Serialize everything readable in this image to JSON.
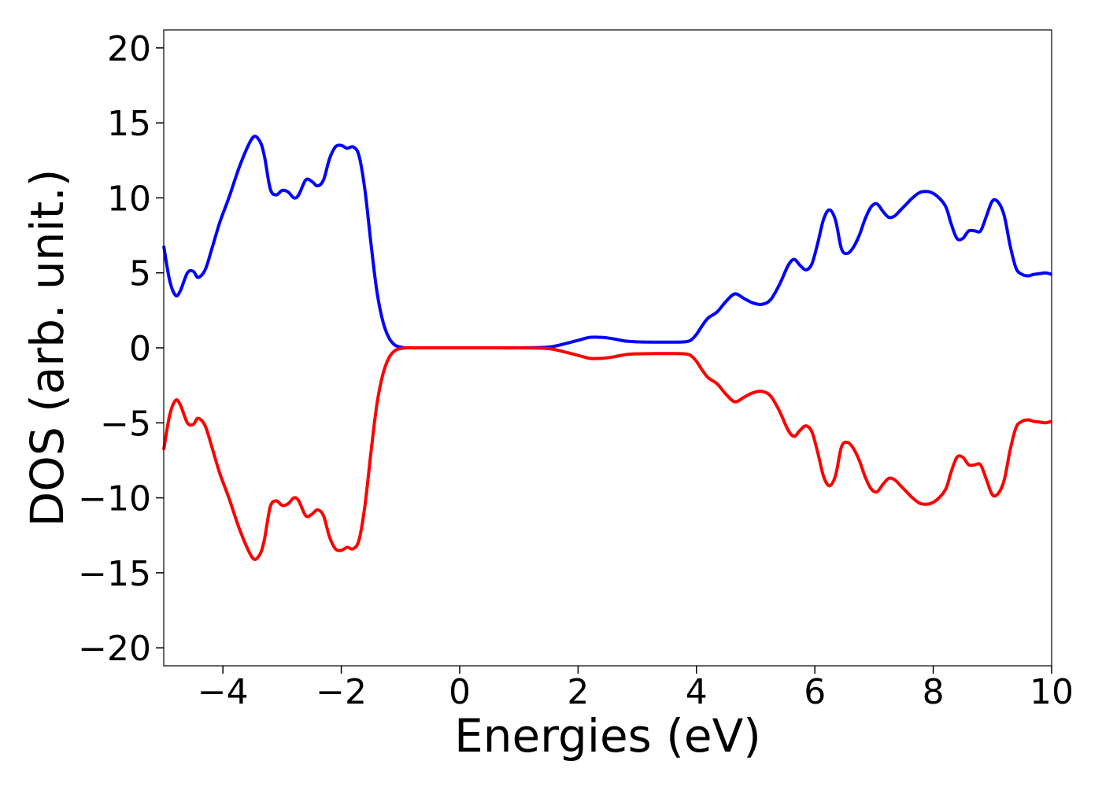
{
  "chart_data": {
    "type": "line",
    "xlabel": "Energies (eV)",
    "ylabel": "DOS (arb. unit.)",
    "xlim": [
      -5,
      10
    ],
    "ylim": [
      -21.2,
      21.2
    ],
    "xticks": [
      -4,
      -2,
      0,
      2,
      4,
      6,
      8,
      10
    ],
    "xtick_labels": [
      "−4",
      "−2",
      "0",
      "2",
      "4",
      "6",
      "8",
      "10"
    ],
    "yticks": [
      20,
      15,
      10,
      5,
      0,
      -5,
      -10,
      -15,
      -20
    ],
    "ytick_labels": [
      "20",
      "15",
      "10",
      "5",
      "0",
      "−5",
      "−10",
      "−15",
      "−20"
    ],
    "grid": false,
    "legend": "none",
    "series": [
      {
        "color": "#0000ff",
        "x": [
          -5.0,
          -4.9,
          -4.8,
          -4.72,
          -4.6,
          -4.5,
          -4.42,
          -4.3,
          -4.18,
          -4.05,
          -3.9,
          -3.7,
          -3.5,
          -3.38,
          -3.3,
          -3.2,
          -3.1,
          -3.0,
          -2.9,
          -2.8,
          -2.72,
          -2.6,
          -2.5,
          -2.4,
          -2.3,
          -2.2,
          -2.1,
          -2.0,
          -1.9,
          -1.8,
          -1.7,
          -1.6,
          -1.5,
          -1.4,
          -1.3,
          -1.2,
          -1.1,
          -1.0,
          -0.9,
          -0.8,
          -0.7,
          -0.6,
          -0.5,
          -0.3,
          0.0,
          0.5,
          1.0,
          1.5,
          1.8,
          2.0,
          2.2,
          2.4,
          2.6,
          2.8,
          3.0,
          3.3,
          3.6,
          3.8,
          3.9,
          4.0,
          4.1,
          4.2,
          4.35,
          4.5,
          4.65,
          4.8,
          4.95,
          5.1,
          5.25,
          5.4,
          5.55,
          5.65,
          5.75,
          5.85,
          5.95,
          6.05,
          6.15,
          6.25,
          6.35,
          6.45,
          6.55,
          6.65,
          6.75,
          6.85,
          6.95,
          7.05,
          7.15,
          7.25,
          7.35,
          7.45,
          7.55,
          7.65,
          7.8,
          8.0,
          8.2,
          8.3,
          8.4,
          8.5,
          8.6,
          8.7,
          8.8,
          8.9,
          9.0,
          9.1,
          9.2,
          9.3,
          9.4,
          9.5,
          9.6,
          9.7,
          9.8,
          9.9,
          10.0
        ],
        "values": [
          6.8,
          4.5,
          3.5,
          3.8,
          5.0,
          5.1,
          4.7,
          5.2,
          6.7,
          8.4,
          10.0,
          12.3,
          14.0,
          13.8,
          12.8,
          10.6,
          10.2,
          10.5,
          10.4,
          10.0,
          10.2,
          11.2,
          11.1,
          10.8,
          11.2,
          12.6,
          13.4,
          13.5,
          13.3,
          13.4,
          12.8,
          10.5,
          7.0,
          3.8,
          1.8,
          0.7,
          0.2,
          0.05,
          0.0,
          0.0,
          0.0,
          0.0,
          0.0,
          0.0,
          0.0,
          0.0,
          0.0,
          0.05,
          0.3,
          0.5,
          0.7,
          0.7,
          0.6,
          0.45,
          0.4,
          0.38,
          0.38,
          0.4,
          0.5,
          0.9,
          1.5,
          2.0,
          2.4,
          3.1,
          3.6,
          3.3,
          3.0,
          2.9,
          3.2,
          4.2,
          5.5,
          5.9,
          5.5,
          5.2,
          5.6,
          7.0,
          8.6,
          9.2,
          8.5,
          6.6,
          6.3,
          6.7,
          7.5,
          8.6,
          9.4,
          9.6,
          9.1,
          8.7,
          8.8,
          9.2,
          9.6,
          10.0,
          10.4,
          10.3,
          9.5,
          8.3,
          7.3,
          7.3,
          7.8,
          7.8,
          7.8,
          8.8,
          9.8,
          9.7,
          8.8,
          6.8,
          5.3,
          4.9,
          4.8,
          4.9,
          4.95,
          5.0,
          4.9
        ]
      },
      {
        "color": "#ff0000",
        "x": [
          -5.0,
          -4.9,
          -4.8,
          -4.72,
          -4.6,
          -4.5,
          -4.42,
          -4.3,
          -4.18,
          -4.05,
          -3.9,
          -3.7,
          -3.5,
          -3.38,
          -3.3,
          -3.2,
          -3.1,
          -3.0,
          -2.9,
          -2.8,
          -2.72,
          -2.6,
          -2.5,
          -2.4,
          -2.3,
          -2.2,
          -2.1,
          -2.0,
          -1.9,
          -1.8,
          -1.7,
          -1.6,
          -1.5,
          -1.4,
          -1.3,
          -1.2,
          -1.1,
          -1.0,
          -0.9,
          -0.8,
          -0.7,
          -0.6,
          -0.5,
          -0.3,
          0.0,
          0.5,
          1.0,
          1.5,
          1.8,
          2.0,
          2.2,
          2.4,
          2.6,
          2.8,
          3.0,
          3.3,
          3.6,
          3.8,
          3.9,
          4.0,
          4.1,
          4.2,
          4.35,
          4.5,
          4.65,
          4.8,
          4.95,
          5.1,
          5.25,
          5.4,
          5.55,
          5.65,
          5.75,
          5.85,
          5.95,
          6.05,
          6.15,
          6.25,
          6.35,
          6.45,
          6.55,
          6.65,
          6.75,
          6.85,
          6.95,
          7.05,
          7.15,
          7.25,
          7.35,
          7.45,
          7.55,
          7.65,
          7.8,
          8.0,
          8.2,
          8.3,
          8.4,
          8.5,
          8.6,
          8.7,
          8.8,
          8.9,
          9.0,
          9.1,
          9.2,
          9.3,
          9.4,
          9.5,
          9.6,
          9.7,
          9.8,
          9.9,
          10.0
        ],
        "values": [
          -6.8,
          -4.5,
          -3.5,
          -3.8,
          -5.0,
          -5.1,
          -4.7,
          -5.2,
          -6.7,
          -8.4,
          -10.0,
          -12.3,
          -14.0,
          -13.8,
          -12.8,
          -10.6,
          -10.2,
          -10.5,
          -10.4,
          -10.0,
          -10.2,
          -11.2,
          -11.1,
          -10.8,
          -11.2,
          -12.6,
          -13.4,
          -13.5,
          -13.3,
          -13.4,
          -12.8,
          -10.5,
          -7.0,
          -3.8,
          -1.8,
          -0.7,
          -0.2,
          -0.05,
          0.0,
          0.0,
          0.0,
          0.0,
          0.0,
          0.0,
          0.0,
          0.0,
          0.0,
          -0.05,
          -0.3,
          -0.5,
          -0.7,
          -0.7,
          -0.6,
          -0.45,
          -0.4,
          -0.38,
          -0.38,
          -0.4,
          -0.5,
          -0.9,
          -1.5,
          -2.0,
          -2.4,
          -3.1,
          -3.6,
          -3.3,
          -3.0,
          -2.9,
          -3.2,
          -4.2,
          -5.5,
          -5.9,
          -5.5,
          -5.2,
          -5.6,
          -7.0,
          -8.6,
          -9.2,
          -8.5,
          -6.6,
          -6.3,
          -6.7,
          -7.5,
          -8.6,
          -9.4,
          -9.6,
          -9.1,
          -8.7,
          -8.8,
          -9.2,
          -9.6,
          -10.0,
          -10.4,
          -10.3,
          -9.5,
          -8.3,
          -7.3,
          -7.3,
          -7.8,
          -7.8,
          -7.8,
          -8.8,
          -9.8,
          -9.7,
          -8.8,
          -6.8,
          -5.3,
          -4.9,
          -4.8,
          -4.9,
          -4.95,
          -5.0,
          -4.9
        ]
      }
    ]
  }
}
